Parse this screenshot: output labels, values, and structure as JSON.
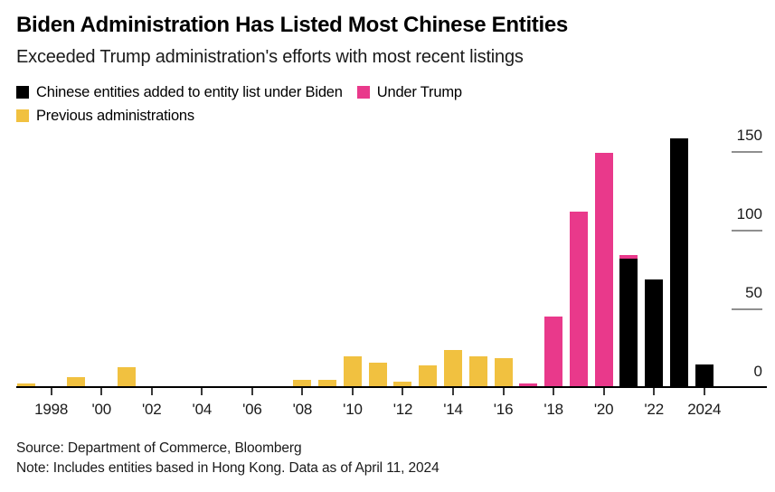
{
  "header": {
    "title_note": "bound from chart_data.title and chart_data.subtitle"
  },
  "chart_data": {
    "type": "bar",
    "stacked": true,
    "title": "Biden Administration Has Listed Most Chinese Entities",
    "subtitle": "Exceeded Trump administration's efforts with most recent listings",
    "categories": [
      1997,
      1998,
      1999,
      2000,
      2001,
      2002,
      2003,
      2004,
      2005,
      2006,
      2007,
      2008,
      2009,
      2010,
      2011,
      2012,
      2013,
      2014,
      2015,
      2016,
      2017,
      2018,
      2019,
      2020,
      2021,
      2022,
      2023,
      2024
    ],
    "series": [
      {
        "key": "biden",
        "label": "Chinese entities added to entity list under Biden",
        "color": "#000000",
        "values": [
          0,
          0,
          0,
          0,
          0,
          0,
          0,
          0,
          0,
          0,
          0,
          0,
          0,
          0,
          0,
          0,
          0,
          0,
          0,
          0,
          0,
          0,
          0,
          0,
          81,
          68,
          157,
          14
        ]
      },
      {
        "key": "trump",
        "label": "Under Trump",
        "color": "#E9398B",
        "values": [
          0,
          0,
          0,
          0,
          0,
          0,
          0,
          0,
          0,
          0,
          0,
          0,
          0,
          0,
          0,
          0,
          0,
          0,
          0,
          0,
          2,
          44,
          111,
          148,
          2,
          0,
          0,
          0
        ]
      },
      {
        "key": "previous",
        "label": "Previous administrations",
        "color": "#F1C140",
        "values": [
          2,
          0,
          6,
          0,
          12,
          0,
          0,
          0,
          0,
          0,
          0,
          4,
          4,
          19,
          15,
          3,
          13,
          23,
          19,
          18,
          0,
          0,
          0,
          0,
          0,
          0,
          0,
          0
        ]
      }
    ],
    "xticks": [
      {
        "year": 1998,
        "label": "1998"
      },
      {
        "year": 2000,
        "label": "'00"
      },
      {
        "year": 2002,
        "label": "'02"
      },
      {
        "year": 2004,
        "label": "'04"
      },
      {
        "year": 2006,
        "label": "'06"
      },
      {
        "year": 2008,
        "label": "'08"
      },
      {
        "year": 2010,
        "label": "'10"
      },
      {
        "year": 2012,
        "label": "'12"
      },
      {
        "year": 2014,
        "label": "'14"
      },
      {
        "year": 2016,
        "label": "'16"
      },
      {
        "year": 2018,
        "label": "'18"
      },
      {
        "year": 2020,
        "label": "'20"
      },
      {
        "year": 2022,
        "label": "'22"
      },
      {
        "year": 2024,
        "label": "2024"
      }
    ],
    "yticks": [
      {
        "value": 0,
        "label": "0"
      },
      {
        "value": 50,
        "label": "50"
      },
      {
        "value": 100,
        "label": "100"
      },
      {
        "value": 150,
        "label": "150"
      }
    ],
    "ylim": [
      0,
      160
    ],
    "xlabel": "",
    "ylabel": "",
    "grid": "off",
    "yaxis_side": "right",
    "legend_position": "top-left",
    "axis_colors": {
      "baseline": "#000000",
      "tick": "#3a3a3a",
      "ytick_dash": "#8f8f8f"
    }
  },
  "footer": {
    "source": "Source: Department of Commerce, Bloomberg",
    "note": "Note: Includes entities based in Hong Kong. Data as of April 11, 2024"
  }
}
